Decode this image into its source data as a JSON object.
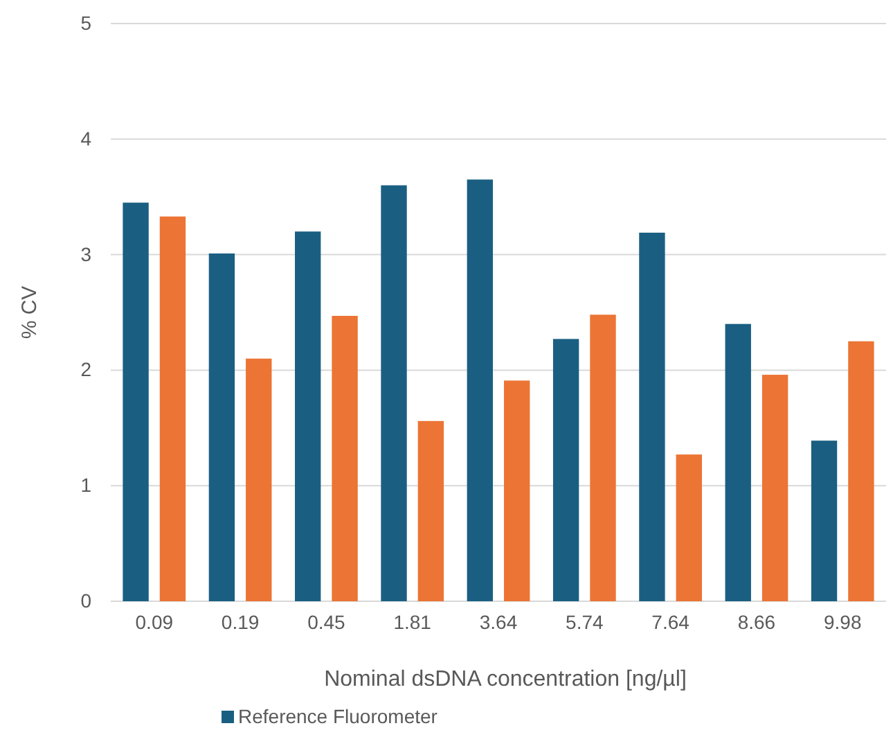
{
  "chart_data": {
    "type": "bar",
    "xlabel": "Nominal dsDNA concentration [ng/µl]",
    "ylabel": "% CV",
    "categories": [
      "0.09",
      "0.19",
      "0.45",
      "1.81",
      "3.64",
      "5.74",
      "7.64",
      "8.66",
      "9.98"
    ],
    "series": [
      {
        "name": "Reference Fluorometer",
        "color": "#1a5f82",
        "values": [
          3.45,
          3.01,
          3.2,
          3.6,
          3.65,
          2.27,
          3.19,
          2.4,
          1.39
        ]
      },
      {
        "color": "#ec7434",
        "values": [
          3.33,
          2.1,
          2.47,
          1.56,
          1.91,
          2.48,
          1.27,
          1.96,
          2.25
        ]
      }
    ],
    "ylim": [
      0,
      5
    ],
    "yticks": [
      0,
      1,
      2,
      3,
      4,
      5
    ],
    "grid": "y",
    "legend": "bottom"
  }
}
